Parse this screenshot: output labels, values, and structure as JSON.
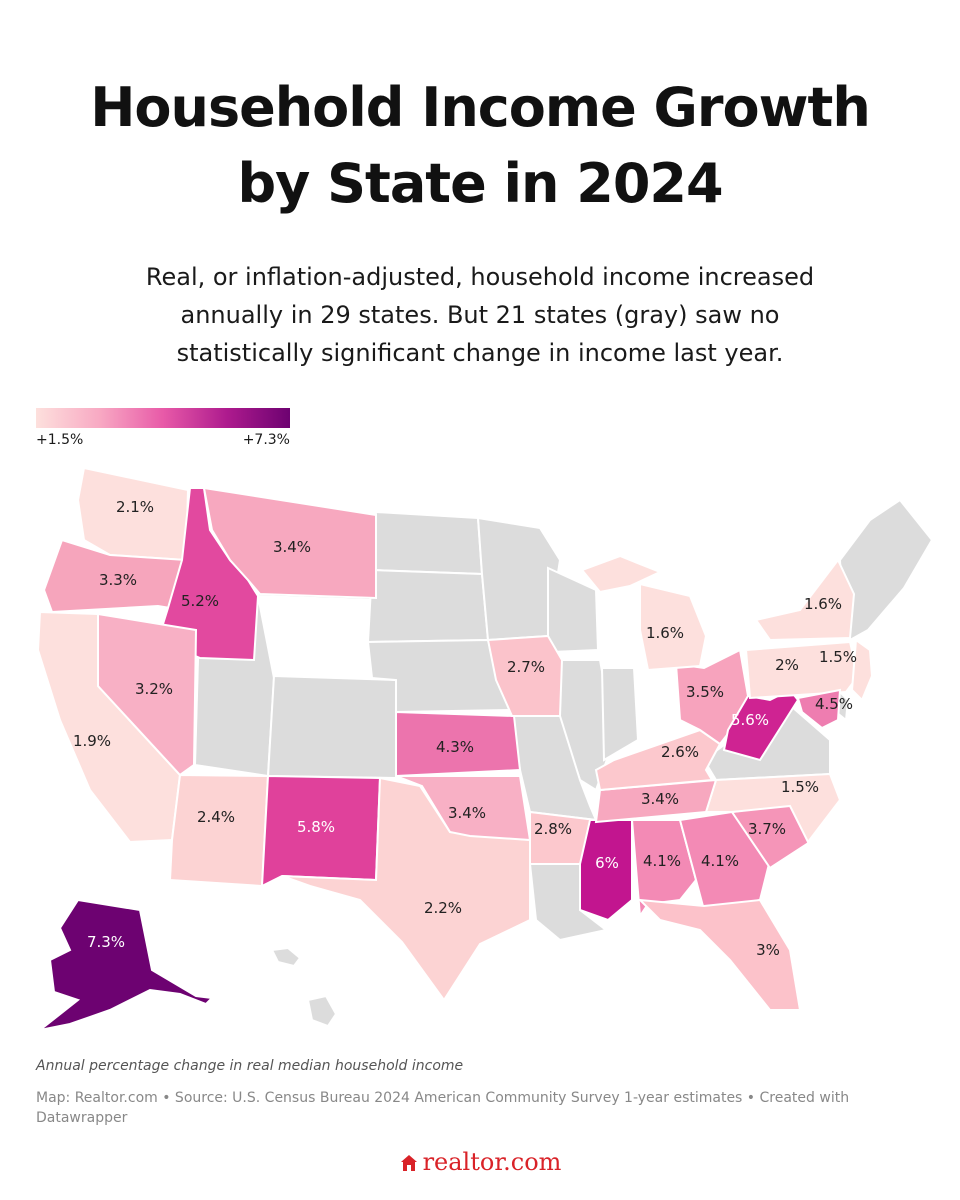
{
  "title_line1": "Household Income Growth",
  "title_line2": "by State in 2024",
  "subtitle_line1": "Real, or inflation-adjusted, household income increased",
  "subtitle_line2": "annually in 29 states. But 21 states (gray) saw no",
  "subtitle_line3": "statistically significant change in income last year.",
  "legend": {
    "min_label": "+1.5%",
    "max_label": "+7.3%"
  },
  "map_labels": {
    "WA": "2.1%",
    "OR": "3.3%",
    "ID": "5.2%",
    "MT": "3.4%",
    "CA": "1.9%",
    "NV": "3.2%",
    "AZ": "2.4%",
    "NM": "5.8%",
    "TX": "2.2%",
    "KS": "4.3%",
    "OK": "3.4%",
    "IA": "2.7%",
    "AR": "2.8%",
    "MS": "6%",
    "AL": "4.1%",
    "GA": "4.1%",
    "FL": "3%",
    "SC": "3.7%",
    "NC": "1.5%",
    "TN": "3.4%",
    "KY": "2.6%",
    "OH": "3.5%",
    "WV": "5.6%",
    "MI": "1.6%",
    "NY": "1.6%",
    "PA": "2%",
    "NJ": "1.5%",
    "MD": "4.5%",
    "AK": "7.3%"
  },
  "caption": "Annual percentage change in real median household income",
  "source_line1": "Map: Realtor.com • Source: U.S. Census Bureau 2024 American Community Survey 1-year estimates • Created with",
  "source_line2": "Datawrapper",
  "logo_text": "realtor.com",
  "colors": {
    "no_change_gray": "#dcdcdc",
    "scale_low": "#fde0dd",
    "scale_high": "#6d0271",
    "logo_red": "#d92228"
  }
}
